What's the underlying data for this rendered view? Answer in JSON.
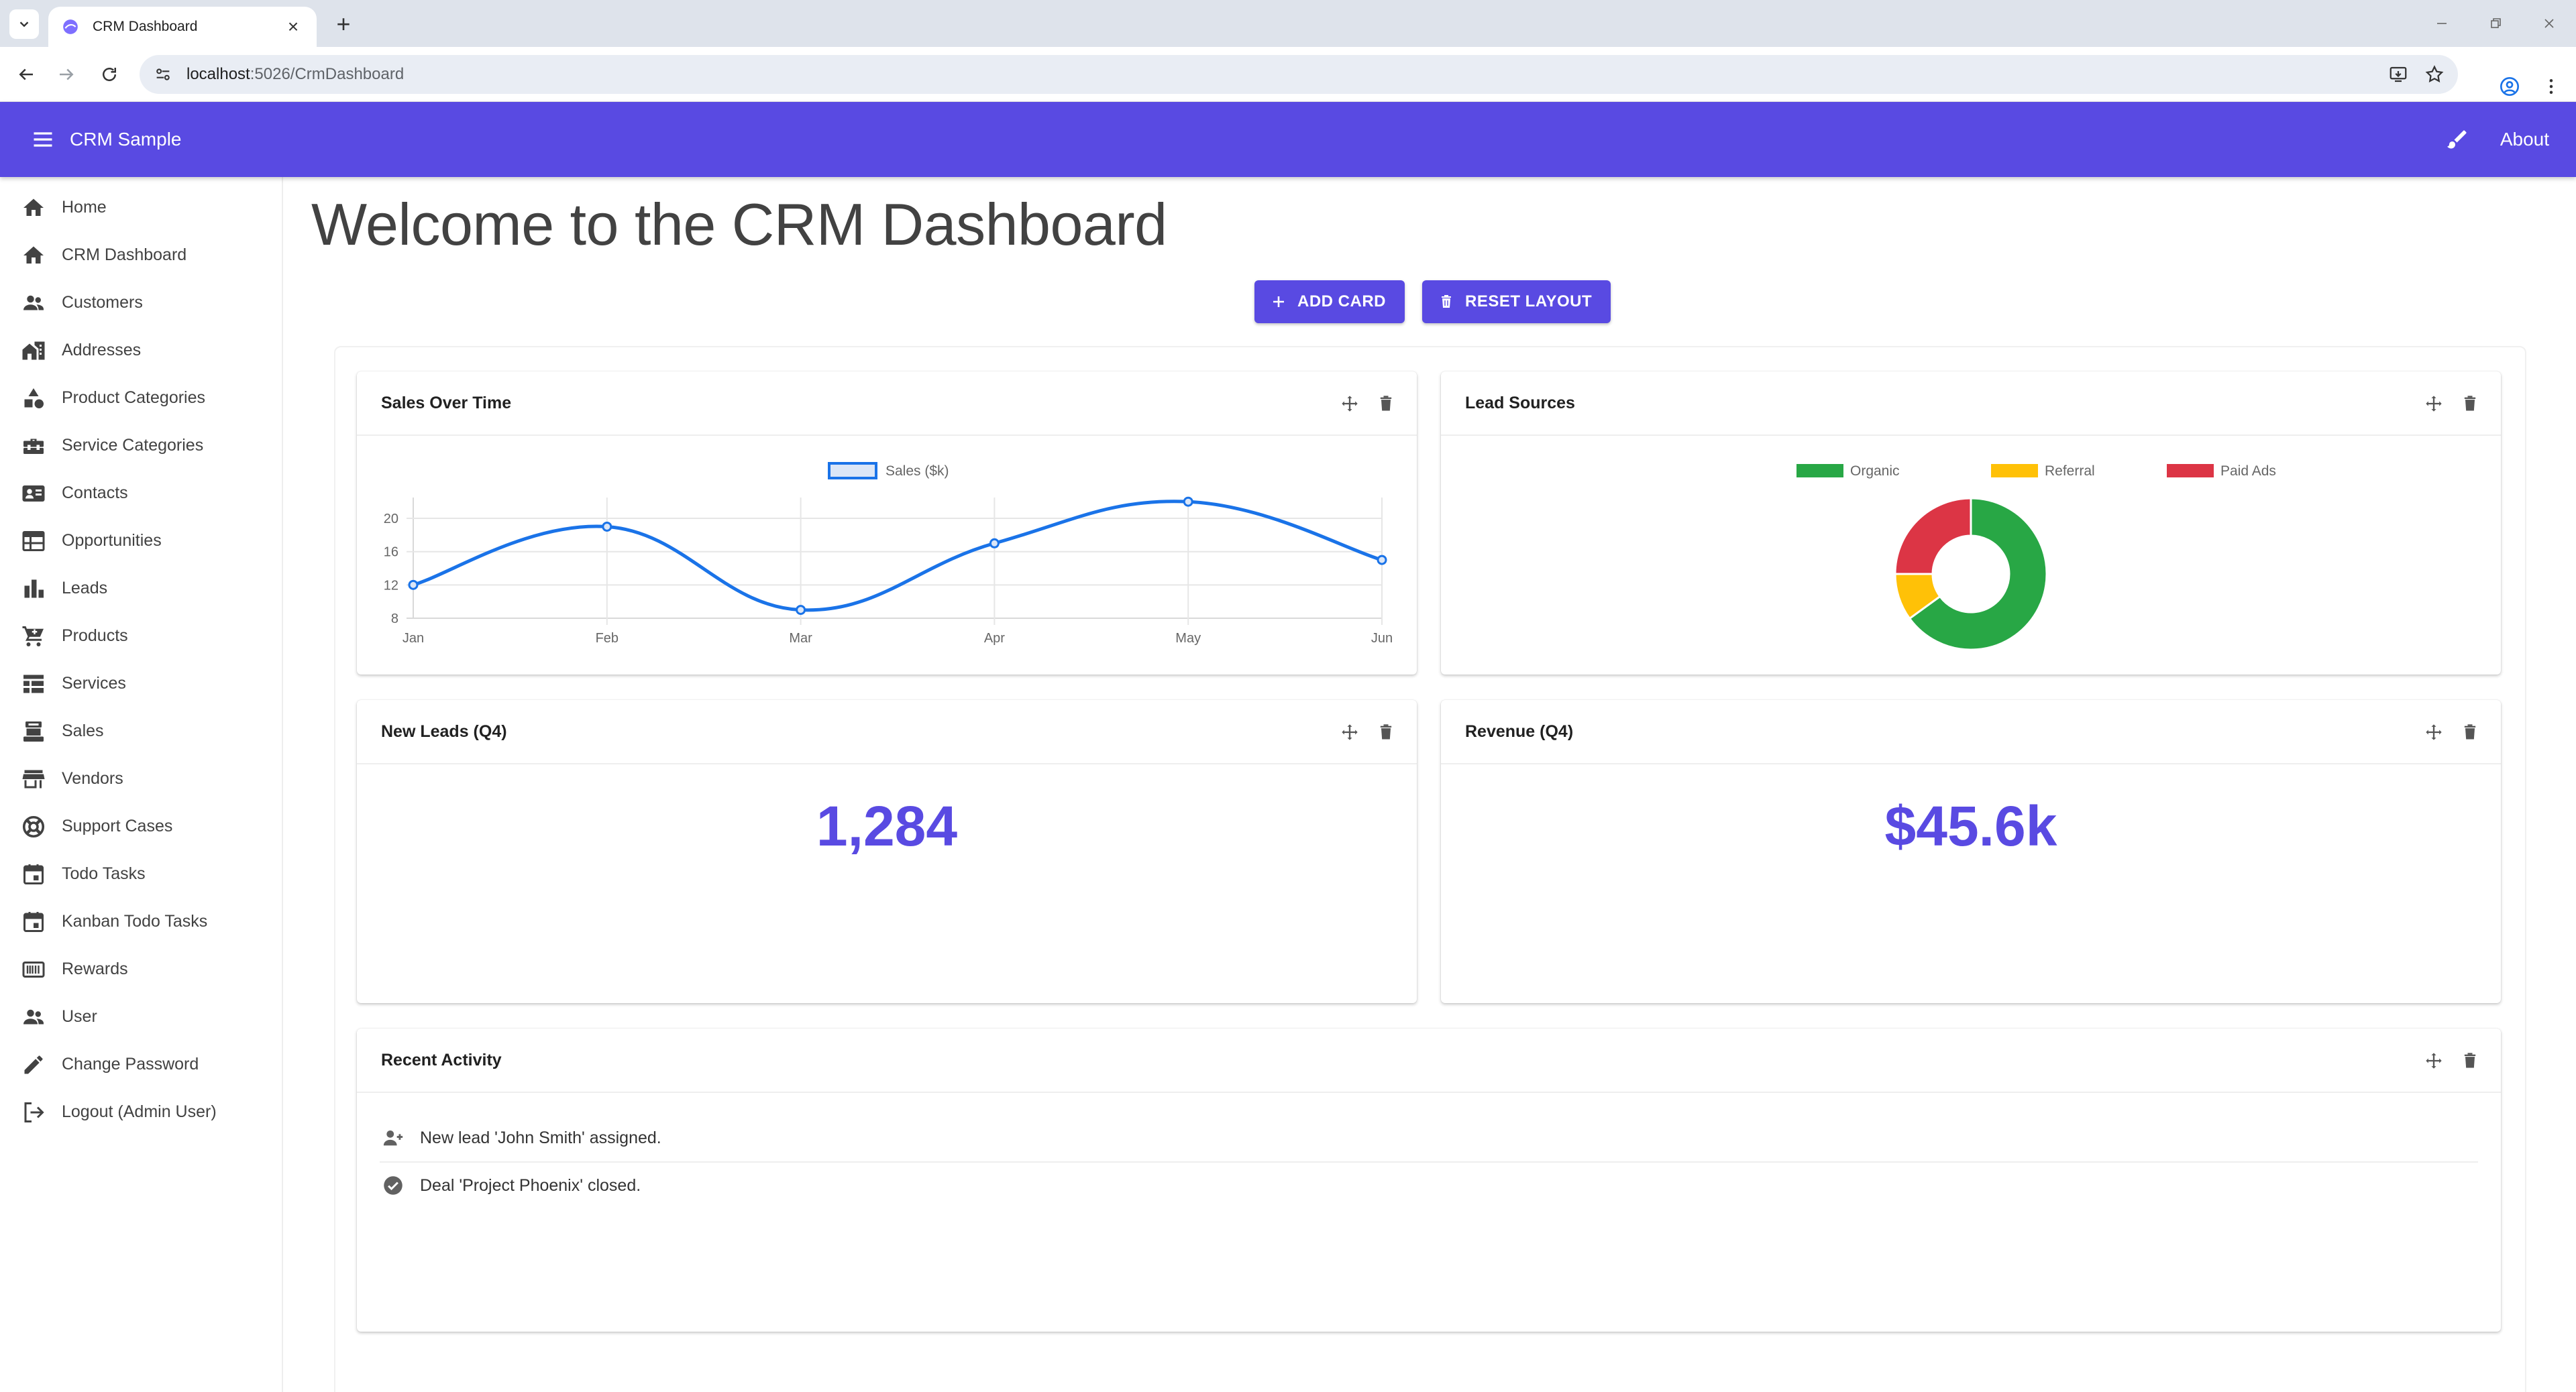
{
  "browser": {
    "tab_title": "CRM Dashboard",
    "url_host": "localhost",
    "url_rest": ":5026/CrmDashboard"
  },
  "appbar": {
    "title": "CRM Sample",
    "about": "About"
  },
  "sidebar": {
    "items": [
      {
        "label": "Home",
        "icon": "home-icon"
      },
      {
        "label": "CRM Dashboard",
        "icon": "home-icon"
      },
      {
        "label": "Customers",
        "icon": "people-icon"
      },
      {
        "label": "Addresses",
        "icon": "buildings-icon"
      },
      {
        "label": "Product Categories",
        "icon": "category-icon"
      },
      {
        "label": "Service Categories",
        "icon": "toolbox-icon"
      },
      {
        "label": "Contacts",
        "icon": "contact-card-icon"
      },
      {
        "label": "Opportunities",
        "icon": "table-icon"
      },
      {
        "label": "Leads",
        "icon": "bar-chart-icon"
      },
      {
        "label": "Products",
        "icon": "cart-icon"
      },
      {
        "label": "Services",
        "icon": "table-view-icon"
      },
      {
        "label": "Sales",
        "icon": "register-icon"
      },
      {
        "label": "Vendors",
        "icon": "store-icon"
      },
      {
        "label": "Support Cases",
        "icon": "lifebuoy-icon"
      },
      {
        "label": "Todo Tasks",
        "icon": "calendar-icon"
      },
      {
        "label": "Kanban Todo Tasks",
        "icon": "calendar-icon"
      },
      {
        "label": "Rewards",
        "icon": "barcode-icon"
      },
      {
        "label": "User",
        "icon": "people-icon"
      },
      {
        "label": "Change Password",
        "icon": "pencil-icon"
      },
      {
        "label": "Logout (Admin User)",
        "icon": "logout-icon"
      }
    ]
  },
  "main": {
    "title": "Welcome to the CRM Dashboard",
    "add_card": "ADD CARD",
    "reset_layout": "RESET LAYOUT"
  },
  "cards": {
    "sales": {
      "title": "Sales Over Time"
    },
    "leads": {
      "title": "Lead Sources"
    },
    "new_leads": {
      "title": "New Leads (Q4)",
      "value": "1,284"
    },
    "revenue": {
      "title": "Revenue (Q4)",
      "value": "$45.6k"
    },
    "activity": {
      "title": "Recent Activity",
      "items": [
        {
          "text": "New lead 'John Smith' assigned.",
          "icon": "person-add-icon"
        },
        {
          "text": "Deal 'Project Phoenix' closed.",
          "icon": "check-circle-icon"
        }
      ]
    }
  },
  "chart_data": [
    {
      "type": "line",
      "categories": [
        "Jan",
        "Feb",
        "Mar",
        "Apr",
        "May",
        "Jun"
      ],
      "series": [
        {
          "name": "Sales ($k)",
          "values": [
            12,
            19,
            9,
            17,
            22,
            15
          ],
          "color": "#1a73e8"
        }
      ],
      "yticks": [
        8,
        12,
        16,
        20
      ],
      "ylim": [
        8,
        22.5
      ],
      "grid": true,
      "legend": "top-center"
    },
    {
      "type": "pie",
      "categories": [
        "Organic",
        "Referral",
        "Paid Ads"
      ],
      "values": [
        65,
        10,
        25
      ],
      "colors": [
        "#28a745",
        "#ffc107",
        "#dc3545"
      ],
      "legend": "top-center"
    }
  ]
}
